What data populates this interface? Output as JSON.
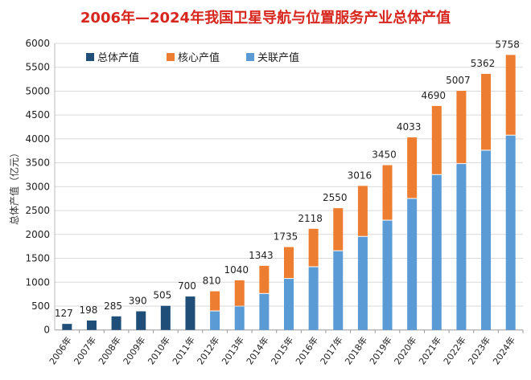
{
  "chart_data": {
    "type": "bar",
    "stacked": true,
    "title": "2006年—2024年我国卫星导航与位置服务产业总体产值",
    "ylabel": "总体产值（亿元）",
    "xlabel": "",
    "ylim": [
      0,
      6000
    ],
    "yticks": [
      0,
      500,
      1000,
      1500,
      2000,
      2500,
      3000,
      3500,
      4000,
      4500,
      5000,
      5500,
      6000
    ],
    "grid": true,
    "legend_position": "top-left",
    "categories": [
      "2006年",
      "2007年",
      "2008年",
      "2009年",
      "2010年",
      "2011年",
      "2012年",
      "2013年",
      "2014年",
      "2015年",
      "2016年",
      "2017年",
      "2018年",
      "2019年",
      "2020年",
      "2021年",
      "2022年",
      "2023年",
      "2024年"
    ],
    "totals": [
      127,
      198,
      285,
      390,
      505,
      700,
      810,
      1040,
      1343,
      1735,
      2118,
      2550,
      3016,
      3450,
      4033,
      4690,
      5007,
      5362,
      5758
    ],
    "series": [
      {
        "name": "总体产值",
        "color": "#1f4e79",
        "values": [
          127,
          198,
          285,
          390,
          505,
          700,
          null,
          null,
          null,
          null,
          null,
          null,
          null,
          null,
          null,
          null,
          null,
          null,
          null
        ]
      },
      {
        "name": "关联产值",
        "color": "#5b9bd5",
        "values": [
          null,
          null,
          null,
          null,
          null,
          null,
          390,
          490,
          755,
          1070,
          1315,
          1650,
          1950,
          2290,
          2745,
          3245,
          3475,
          3755,
          4070
        ]
      },
      {
        "name": "核心产值",
        "color": "#ed7d31",
        "values": [
          null,
          null,
          null,
          null,
          null,
          null,
          420,
          550,
          588,
          665,
          803,
          900,
          1066,
          1160,
          1288,
          1445,
          1532,
          1607,
          1688
        ]
      }
    ],
    "legend_order": [
      "总体产值",
      "核心产值",
      "关联产值"
    ],
    "title_color": "#d7261e"
  }
}
